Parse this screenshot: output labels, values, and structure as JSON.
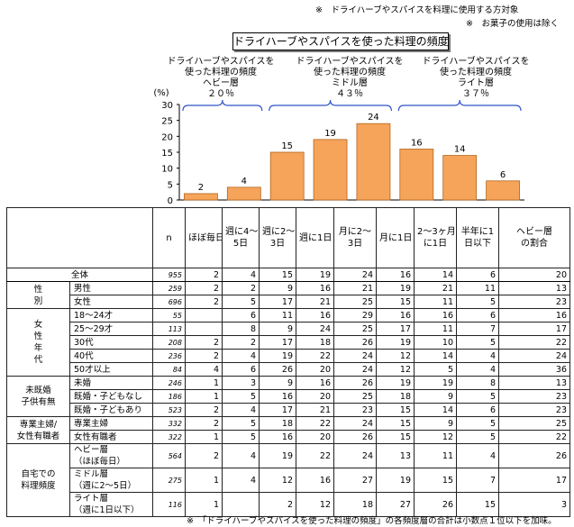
{
  "notes": {
    "note1": "※　ドライハーブやスパイスを料理に使用する方対象",
    "note2": "※　お菓子の使用は除く",
    "footer": "※　「ドライハーブやスパイスを使った料理の頻度」の各頻度層の合計は小数点１位以下を加味。"
  },
  "chart_data": {
    "type": "bar",
    "title": "ドライハーブやスパイスを使った料理の頻度",
    "ylabel": "(%)",
    "ylim": [
      0,
      30
    ],
    "yticks": [
      0,
      5,
      10,
      15,
      20,
      25,
      30
    ],
    "categories": [
      "ほぼ毎日",
      "週に4～5日",
      "週に2～3日",
      "週に1日",
      "月に2～3日",
      "月に1日",
      "2～3ヶ月に1日",
      "半年に1日以下"
    ],
    "values": [
      2,
      4,
      15,
      19,
      24,
      16,
      14,
      6
    ],
    "bar_color": "#F5A45A",
    "groups": [
      {
        "label": "ドライハーブやスパイスを\n使った料理の頻度\nヘビー層\n２０％",
        "from": 0,
        "to": 1
      },
      {
        "label": "ドライハーブやスパイスを\n使った料理の頻度\nミドル層\n４３％",
        "from": 2,
        "to": 4
      },
      {
        "label": "ドライハーブやスパイスを\n使った料理の頻度\nライト層\n３７％",
        "from": 5,
        "to": 7
      }
    ]
  },
  "table": {
    "headers": [
      "n",
      "ほぼ毎日",
      "週に4～\n5日",
      "週に2～\n3日",
      "週に1日",
      "月に2～\n3日",
      "月に1日",
      "2～3ヶ月\nに1日",
      "半年に1\n日以下",
      "ヘビー層\nの割合"
    ],
    "total": {
      "label": "全体",
      "n": "955",
      "values": [
        "2",
        "4",
        "15",
        "19",
        "24",
        "16",
        "14",
        "6"
      ],
      "heavy": "20"
    },
    "groups": [
      {
        "label": "性\n別",
        "rows": [
          {
            "label": "男性",
            "n": "259",
            "values": [
              "2",
              "2",
              "9",
              "16",
              "21",
              "19",
              "21",
              "11"
            ],
            "heavy": "13"
          },
          {
            "label": "女性",
            "n": "696",
            "values": [
              "2",
              "5",
              "17",
              "21",
              "25",
              "15",
              "11",
              "5"
            ],
            "heavy": "23"
          }
        ]
      },
      {
        "label": "女\n性\n年\n代",
        "rows": [
          {
            "label": "18～24才",
            "n": "55",
            "values": [
              "",
              "6",
              "11",
              "16",
              "29",
              "16",
              "16",
              "6"
            ],
            "heavy": "16"
          },
          {
            "label": "25～29才",
            "n": "113",
            "values": [
              "",
              "8",
              "9",
              "24",
              "25",
              "17",
              "11",
              "7"
            ],
            "heavy": "17"
          },
          {
            "label": "30代",
            "n": "208",
            "values": [
              "2",
              "2",
              "17",
              "18",
              "26",
              "19",
              "10",
              "5"
            ],
            "heavy": "22"
          },
          {
            "label": "40代",
            "n": "236",
            "values": [
              "2",
              "4",
              "19",
              "22",
              "24",
              "12",
              "14",
              "4"
            ],
            "heavy": "24"
          },
          {
            "label": "50才以上",
            "n": "84",
            "values": [
              "4",
              "6",
              "26",
              "20",
              "24",
              "12",
              "5",
              "4"
            ],
            "heavy": "36"
          }
        ]
      },
      {
        "label": "未既婚\n子供有無",
        "rows": [
          {
            "label": "未婚",
            "n": "246",
            "values": [
              "1",
              "3",
              "9",
              "16",
              "26",
              "19",
              "19",
              "8"
            ],
            "heavy": "13"
          },
          {
            "label": "既婚・子どもなし",
            "n": "186",
            "values": [
              "1",
              "5",
              "16",
              "20",
              "25",
              "18",
              "9",
              "5"
            ],
            "heavy": "23"
          },
          {
            "label": "既婚・子どもあり",
            "n": "523",
            "values": [
              "2",
              "4",
              "17",
              "21",
              "23",
              "15",
              "14",
              "6"
            ],
            "heavy": "23"
          }
        ]
      },
      {
        "label": "専業主婦/\n女性有職者",
        "rows": [
          {
            "label": "専業主婦",
            "n": "332",
            "values": [
              "2",
              "5",
              "18",
              "22",
              "24",
              "15",
              "9",
              "5"
            ],
            "heavy": "25"
          },
          {
            "label": "女性有職者",
            "n": "322",
            "values": [
              "1",
              "5",
              "16",
              "20",
              "26",
              "15",
              "12",
              "5"
            ],
            "heavy": "22"
          }
        ]
      },
      {
        "label": "自宅での\n料理頻度",
        "rows": [
          {
            "label": "ヘビー層\n（ほぼ毎日）",
            "n": "564",
            "values": [
              "2",
              "4",
              "19",
              "22",
              "24",
              "13",
              "11",
              "4"
            ],
            "heavy": "26"
          },
          {
            "label": "ミドル層\n（週に2～5日）",
            "n": "275",
            "values": [
              "1",
              "4",
              "12",
              "16",
              "27",
              "19",
              "15",
              "7"
            ],
            "heavy": "17"
          },
          {
            "label": "ライト層\n（週に1日以下）",
            "n": "116",
            "values": [
              "1",
              "",
              "2",
              "12",
              "18",
              "27",
              "26",
              "15"
            ],
            "heavy": "3"
          }
        ]
      }
    ]
  }
}
